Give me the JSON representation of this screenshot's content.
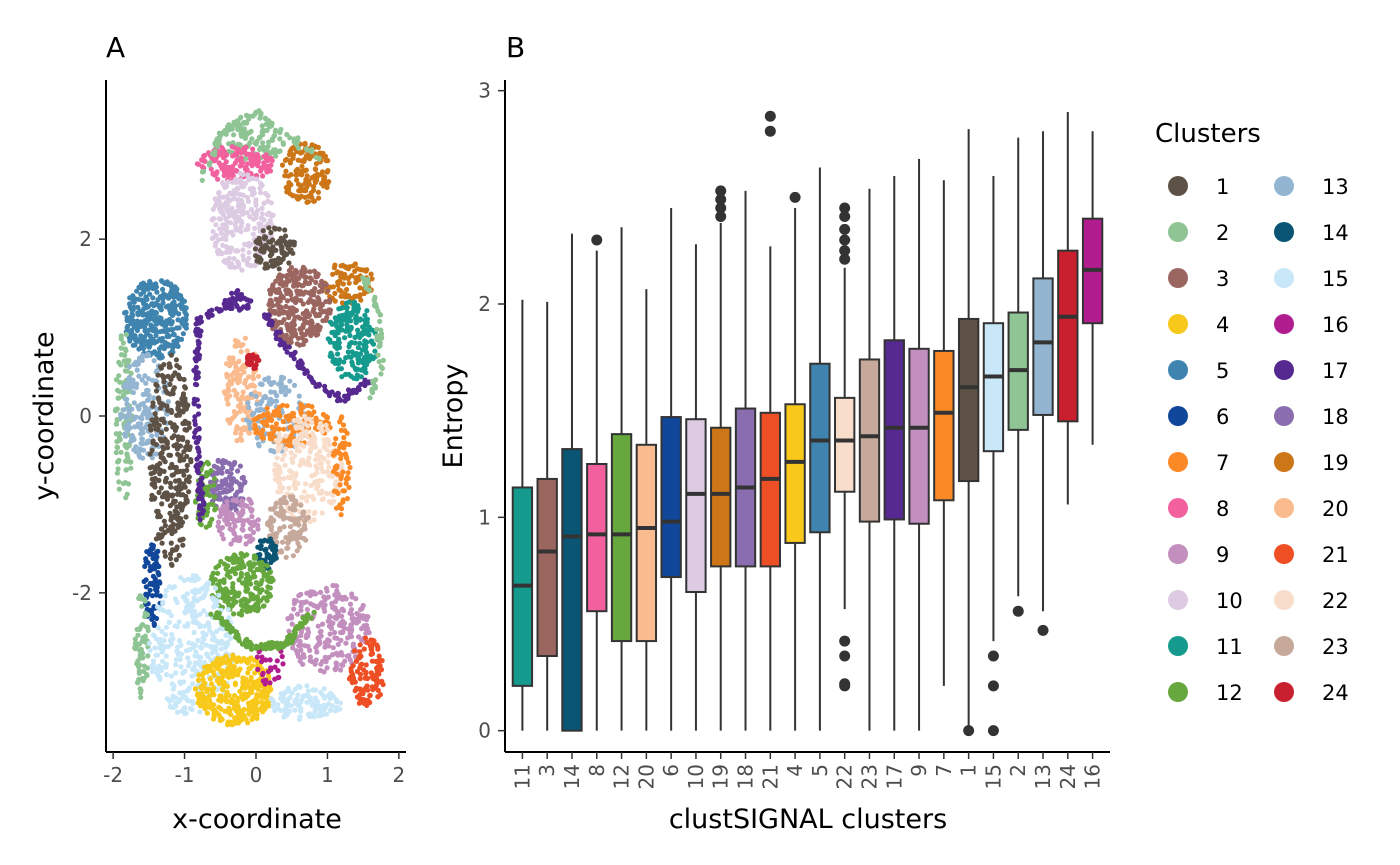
{
  "palette": {
    "1": "#5E5246",
    "2": "#8FC494",
    "3": "#9C6660",
    "4": "#F8C91A",
    "5": "#3E84AE",
    "6": "#10479A",
    "7": "#FB8A26",
    "8": "#F2619E",
    "9": "#C38FBF",
    "10": "#DDCBE3",
    "11": "#159A8E",
    "12": "#66A83E",
    "13": "#93B5D2",
    "14": "#0B5574",
    "15": "#C8E7F8",
    "16": "#B11D8E",
    "17": "#562990",
    "18": "#8A6DAF",
    "19": "#CC7618",
    "20": "#FABB8E",
    "21": "#EE4F25",
    "22": "#F9DDCB",
    "23": "#C6A99A",
    "24": "#C8202E"
  },
  "chart_data": [
    {
      "type": "scatter",
      "panel_label": "A",
      "xlabel": "x-coordinate",
      "ylabel": "y-coordinate",
      "xlim": [
        -2.1,
        2.1
      ],
      "ylim": [
        -3.8,
        3.8
      ],
      "xticks": [
        -2,
        -1,
        0,
        1,
        2
      ],
      "yticks": [
        -2,
        0,
        2
      ],
      "regions": [
        {
          "cluster": "2",
          "cx": -0.1,
          "cy": 3.1,
          "rx": 0.5,
          "ry": 0.25,
          "n": 110,
          "color": "#8FC494"
        },
        {
          "cluster": "8",
          "cx": -0.3,
          "cy": 2.85,
          "rx": 0.55,
          "ry": 0.2,
          "n": 150,
          "color": "#F2619E"
        },
        {
          "cluster": "19",
          "cx": 0.7,
          "cy": 2.75,
          "rx": 0.35,
          "ry": 0.35,
          "n": 140,
          "color": "#CC7618"
        },
        {
          "cluster": "10",
          "cx": -0.2,
          "cy": 2.2,
          "rx": 0.45,
          "ry": 0.55,
          "n": 260,
          "color": "#DDCBE3"
        },
        {
          "cluster": "1",
          "cx": 0.25,
          "cy": 1.9,
          "rx": 0.3,
          "ry": 0.25,
          "n": 90,
          "color": "#5E5246"
        },
        {
          "cluster": "19",
          "cx": 1.3,
          "cy": 1.5,
          "rx": 0.35,
          "ry": 0.25,
          "n": 90,
          "color": "#CC7618"
        },
        {
          "cluster": "3",
          "cx": 0.6,
          "cy": 1.25,
          "rx": 0.45,
          "ry": 0.45,
          "n": 280,
          "color": "#9C6660"
        },
        {
          "cluster": "11",
          "cx": 1.35,
          "cy": 0.85,
          "rx": 0.35,
          "ry": 0.45,
          "n": 180,
          "color": "#159A8E"
        },
        {
          "cluster": "5",
          "cx": -1.4,
          "cy": 1.1,
          "rx": 0.45,
          "ry": 0.45,
          "n": 320,
          "color": "#3E84AE"
        },
        {
          "cluster": "17",
          "cx": -0.25,
          "cy": 1.3,
          "rx": 0.2,
          "ry": 0.12,
          "n": 40,
          "color": "#562990"
        },
        {
          "cluster": "2",
          "cx": -1.85,
          "cy": 0.0,
          "rx": 0.12,
          "ry": 1.0,
          "n": 100,
          "color": "#8FC494"
        },
        {
          "cluster": "13",
          "cx": -1.55,
          "cy": 0.1,
          "rx": 0.35,
          "ry": 0.6,
          "n": 160,
          "color": "#93B5D2"
        },
        {
          "cluster": "1",
          "cx": -1.2,
          "cy": -0.5,
          "rx": 0.3,
          "ry": 1.2,
          "n": 300,
          "color": "#5E5246"
        },
        {
          "cluster": "20",
          "cx": -0.2,
          "cy": 0.3,
          "rx": 0.25,
          "ry": 0.6,
          "n": 140,
          "color": "#FABB8E"
        },
        {
          "cluster": "24",
          "cx": -0.05,
          "cy": 0.6,
          "rx": 0.1,
          "ry": 0.1,
          "n": 30,
          "color": "#C8202E"
        },
        {
          "cluster": "13",
          "cx": 0.3,
          "cy": 0.0,
          "rx": 0.45,
          "ry": 0.45,
          "n": 120,
          "color": "#93B5D2"
        },
        {
          "cluster": "7",
          "cx": 0.5,
          "cy": -0.1,
          "rx": 0.55,
          "ry": 0.25,
          "n": 130,
          "color": "#FB8A26"
        },
        {
          "cluster": "22",
          "cx": 0.7,
          "cy": -0.6,
          "rx": 0.5,
          "ry": 0.6,
          "n": 220,
          "color": "#F9DDCB"
        },
        {
          "cluster": "7",
          "cx": 1.2,
          "cy": -0.6,
          "rx": 0.12,
          "ry": 0.6,
          "n": 60,
          "color": "#FB8A26"
        },
        {
          "cluster": "18",
          "cx": -0.4,
          "cy": -0.8,
          "rx": 0.25,
          "ry": 0.35,
          "n": 110,
          "color": "#8A6DAF"
        },
        {
          "cluster": "9",
          "cx": -0.25,
          "cy": -1.2,
          "rx": 0.3,
          "ry": 0.3,
          "n": 90,
          "color": "#C38FBF"
        },
        {
          "cluster": "23",
          "cx": 0.45,
          "cy": -1.25,
          "rx": 0.3,
          "ry": 0.35,
          "n": 120,
          "color": "#C6A99A"
        },
        {
          "cluster": "14",
          "cx": 0.15,
          "cy": -1.55,
          "rx": 0.14,
          "ry": 0.2,
          "n": 50,
          "color": "#0B5574"
        },
        {
          "cluster": "12",
          "cx": -0.7,
          "cy": -0.9,
          "rx": 0.15,
          "ry": 0.4,
          "n": 60,
          "color": "#66A83E"
        },
        {
          "cluster": "12",
          "cx": -0.2,
          "cy": -1.9,
          "rx": 0.45,
          "ry": 0.35,
          "n": 220,
          "color": "#66A83E"
        },
        {
          "cluster": "6",
          "cx": -1.45,
          "cy": -1.9,
          "rx": 0.12,
          "ry": 0.5,
          "n": 80,
          "color": "#10479A"
        },
        {
          "cluster": "2",
          "cx": -1.6,
          "cy": -2.6,
          "rx": 0.1,
          "ry": 0.6,
          "n": 70,
          "color": "#8FC494"
        },
        {
          "cluster": "15",
          "cx": -0.9,
          "cy": -2.6,
          "rx": 0.6,
          "ry": 0.8,
          "n": 340,
          "color": "#C8E7F8"
        },
        {
          "cluster": "9",
          "cx": 1.0,
          "cy": -2.4,
          "rx": 0.6,
          "ry": 0.5,
          "n": 240,
          "color": "#C38FBF"
        },
        {
          "cluster": "21",
          "cx": 1.55,
          "cy": -2.9,
          "rx": 0.25,
          "ry": 0.4,
          "n": 110,
          "color": "#EE4F25"
        },
        {
          "cluster": "4",
          "cx": -0.3,
          "cy": -3.1,
          "rx": 0.55,
          "ry": 0.4,
          "n": 330,
          "color": "#F8C91A"
        },
        {
          "cluster": "15",
          "cx": 0.7,
          "cy": -3.25,
          "rx": 0.5,
          "ry": 0.2,
          "n": 110,
          "color": "#C8E7F8"
        },
        {
          "cluster": "16",
          "cx": 0.2,
          "cy": -2.8,
          "rx": 0.2,
          "ry": 0.3,
          "n": 30,
          "color": "#B11D8E"
        }
      ],
      "paths": [
        {
          "cluster": "17",
          "color": "#562990",
          "points": [
            [
              -0.3,
              1.3
            ],
            [
              -0.8,
              1.1
            ],
            [
              -0.85,
              0.2
            ],
            [
              -0.8,
              -0.6
            ],
            [
              -0.75,
              -1.2
            ]
          ],
          "n": 130
        },
        {
          "cluster": "17",
          "color": "#562990",
          "points": [
            [
              0.1,
              1.2
            ],
            [
              0.4,
              0.8
            ],
            [
              0.8,
              0.4
            ],
            [
              1.2,
              0.2
            ],
            [
              1.6,
              0.4
            ]
          ],
          "n": 90
        },
        {
          "cluster": "12",
          "color": "#66A83E",
          "points": [
            [
              -0.6,
              -2.2
            ],
            [
              -0.1,
              -2.6
            ],
            [
              0.4,
              -2.6
            ],
            [
              0.8,
              -2.2
            ]
          ],
          "n": 120
        },
        {
          "cluster": "2",
          "color": "#8FC494",
          "points": [
            [
              -0.8,
              2.6
            ],
            [
              -0.5,
              3.2
            ],
            [
              0.0,
              3.45
            ],
            [
              0.4,
              3.2
            ],
            [
              0.9,
              2.9
            ]
          ],
          "n": 70
        },
        {
          "cluster": "2",
          "color": "#8FC494",
          "points": [
            [
              1.5,
              1.6
            ],
            [
              1.7,
              1.2
            ],
            [
              1.75,
              0.6
            ],
            [
              1.6,
              0.2
            ]
          ],
          "n": 50
        }
      ]
    },
    {
      "type": "box",
      "panel_label": "B",
      "xlabel": "clustSIGNAL clusters",
      "ylabel": "Entropy",
      "ylim": [
        -0.1,
        3.05
      ],
      "yticks": [
        0,
        1,
        2,
        3
      ],
      "categories": [
        "11",
        "3",
        "14",
        "8",
        "12",
        "20",
        "6",
        "10",
        "19",
        "18",
        "21",
        "4",
        "5",
        "22",
        "23",
        "17",
        "9",
        "7",
        "1",
        "15",
        "2",
        "13",
        "24",
        "16"
      ],
      "boxes": [
        {
          "cluster": "11",
          "whisker_low": 0.0,
          "q1": 0.21,
          "median": 0.68,
          "q3": 1.14,
          "whisker_high": 2.02,
          "outliers": []
        },
        {
          "cluster": "3",
          "whisker_low": 0.0,
          "q1": 0.35,
          "median": 0.84,
          "q3": 1.18,
          "whisker_high": 2.01,
          "outliers": []
        },
        {
          "cluster": "14",
          "whisker_low": 0.0,
          "q1": 0.0,
          "median": 0.91,
          "q3": 1.32,
          "whisker_high": 2.33,
          "outliers": []
        },
        {
          "cluster": "8",
          "whisker_low": 0.0,
          "q1": 0.56,
          "median": 0.92,
          "q3": 1.25,
          "whisker_high": 2.25,
          "outliers": [
            2.3
          ]
        },
        {
          "cluster": "12",
          "whisker_low": 0.0,
          "q1": 0.42,
          "median": 0.92,
          "q3": 1.39,
          "whisker_high": 2.36,
          "outliers": []
        },
        {
          "cluster": "20",
          "whisker_low": 0.0,
          "q1": 0.42,
          "median": 0.95,
          "q3": 1.34,
          "whisker_high": 2.07,
          "outliers": []
        },
        {
          "cluster": "6",
          "whisker_low": 0.0,
          "q1": 0.72,
          "median": 0.98,
          "q3": 1.47,
          "whisker_high": 2.45,
          "outliers": []
        },
        {
          "cluster": "10",
          "whisker_low": 0.0,
          "q1": 0.65,
          "median": 1.11,
          "q3": 1.46,
          "whisker_high": 2.28,
          "outliers": []
        },
        {
          "cluster": "19",
          "whisker_low": 0.0,
          "q1": 0.77,
          "median": 1.11,
          "q3": 1.42,
          "whisker_high": 2.38,
          "outliers": [
            2.41,
            2.45,
            2.49,
            2.53
          ]
        },
        {
          "cluster": "18",
          "whisker_low": 0.0,
          "q1": 0.77,
          "median": 1.14,
          "q3": 1.51,
          "whisker_high": 2.53,
          "outliers": []
        },
        {
          "cluster": "21",
          "whisker_low": 0.0,
          "q1": 0.77,
          "median": 1.18,
          "q3": 1.49,
          "whisker_high": 2.27,
          "outliers": [
            2.81,
            2.88
          ]
        },
        {
          "cluster": "4",
          "whisker_low": 0.0,
          "q1": 0.88,
          "median": 1.26,
          "q3": 1.53,
          "whisker_high": 2.45,
          "outliers": [
            2.5
          ]
        },
        {
          "cluster": "5",
          "whisker_low": 0.0,
          "q1": 0.93,
          "median": 1.36,
          "q3": 1.72,
          "whisker_high": 2.64,
          "outliers": []
        },
        {
          "cluster": "22",
          "whisker_low": 0.57,
          "q1": 1.12,
          "median": 1.36,
          "q3": 1.56,
          "whisker_high": 2.17,
          "outliers": [
            0.21,
            0.22,
            0.35,
            0.42,
            2.21,
            2.25,
            2.3,
            2.35,
            2.41,
            2.45
          ]
        },
        {
          "cluster": "23",
          "whisker_low": 0.0,
          "q1": 0.98,
          "median": 1.38,
          "q3": 1.74,
          "whisker_high": 2.54,
          "outliers": []
        },
        {
          "cluster": "17",
          "whisker_low": 0.0,
          "q1": 0.99,
          "median": 1.42,
          "q3": 1.83,
          "whisker_high": 2.6,
          "outliers": []
        },
        {
          "cluster": "9",
          "whisker_low": 0.0,
          "q1": 0.97,
          "median": 1.42,
          "q3": 1.79,
          "whisker_high": 2.68,
          "outliers": []
        },
        {
          "cluster": "7",
          "whisker_low": 0.21,
          "q1": 1.08,
          "median": 1.49,
          "q3": 1.78,
          "whisker_high": 2.58,
          "outliers": []
        },
        {
          "cluster": "1",
          "whisker_low": 0.0,
          "q1": 1.17,
          "median": 1.61,
          "q3": 1.93,
          "whisker_high": 2.82,
          "outliers": [
            0.0
          ]
        },
        {
          "cluster": "15",
          "whisker_low": 0.42,
          "q1": 1.31,
          "median": 1.66,
          "q3": 1.91,
          "whisker_high": 2.6,
          "outliers": [
            0.0,
            0.21,
            0.35
          ]
        },
        {
          "cluster": "2",
          "whisker_low": 0.63,
          "q1": 1.41,
          "median": 1.69,
          "q3": 1.96,
          "whisker_high": 2.78,
          "outliers": [
            0.56
          ]
        },
        {
          "cluster": "13",
          "whisker_low": 0.56,
          "q1": 1.48,
          "median": 1.82,
          "q3": 2.12,
          "whisker_high": 2.81,
          "outliers": [
            0.47
          ]
        },
        {
          "cluster": "24",
          "whisker_low": 1.06,
          "q1": 1.45,
          "median": 1.94,
          "q3": 2.25,
          "whisker_high": 2.9,
          "outliers": []
        },
        {
          "cluster": "16",
          "whisker_low": 1.34,
          "q1": 1.91,
          "median": 2.16,
          "q3": 2.4,
          "whisker_high": 2.81,
          "outliers": []
        }
      ]
    }
  ],
  "legend": {
    "title": "Clusters",
    "placement": "right",
    "items": [
      "1",
      "2",
      "3",
      "4",
      "5",
      "6",
      "7",
      "8",
      "9",
      "10",
      "11",
      "12",
      "13",
      "14",
      "15",
      "16",
      "17",
      "18",
      "19",
      "20",
      "21",
      "22",
      "23",
      "24"
    ]
  }
}
